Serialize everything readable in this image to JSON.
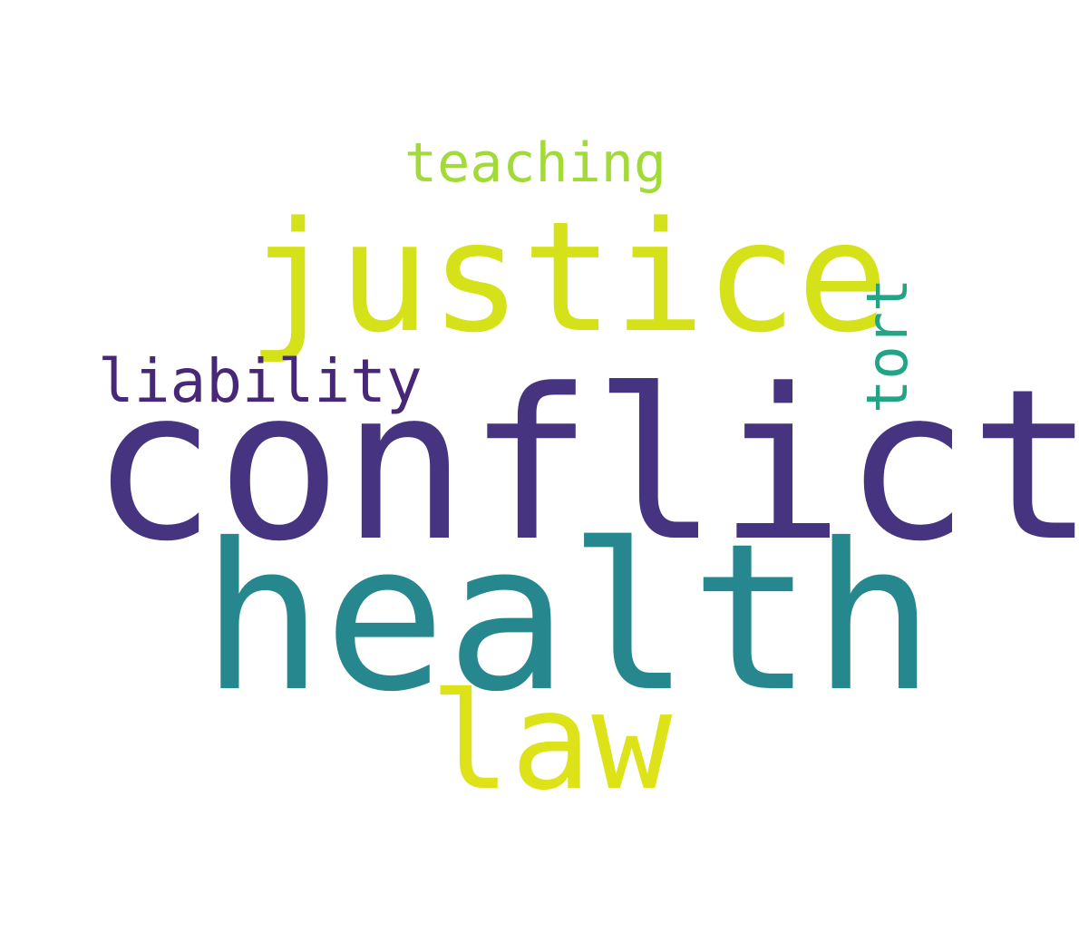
{
  "words": [
    {
      "text": "conflict",
      "color": "#463480"
    },
    {
      "text": "health",
      "color": "#26878e"
    },
    {
      "text": "justice",
      "color": "#d5e21a"
    },
    {
      "text": "law",
      "color": "#dde318"
    },
    {
      "text": "liability",
      "color": "#472878"
    },
    {
      "text": "teaching",
      "color": "#a2da37"
    },
    {
      "text": "tort",
      "color": "#21a585"
    }
  ]
}
